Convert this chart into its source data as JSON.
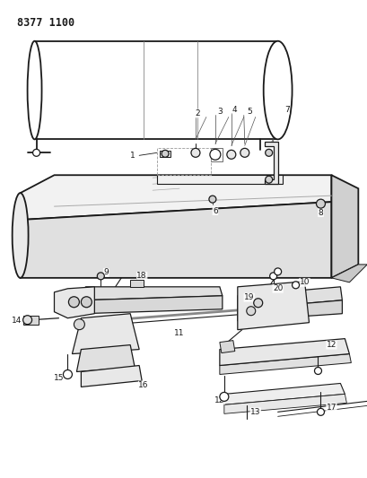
{
  "title": "8377 1100",
  "bg": "#ffffff",
  "lc": "#1a1a1a",
  "fig_w": 4.1,
  "fig_h": 5.33,
  "dpi": 100
}
